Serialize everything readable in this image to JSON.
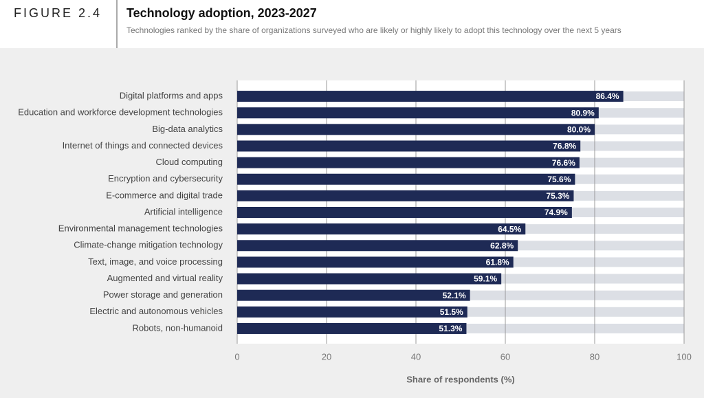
{
  "chart_data": {
    "type": "bar",
    "orientation": "horizontal",
    "figure_label": "FIGURE 2.4",
    "title": "Technology adoption, 2023-2027",
    "subtitle": "Technologies ranked by the share of organizations surveyed who are likely or highly likely to adopt this technology over the next 5 years",
    "xlabel": "Share of respondents (%)",
    "categories": [
      "Digital platforms and apps",
      "Education and workforce development technologies",
      "Big-data analytics",
      "Internet of things and connected devices",
      "Cloud computing",
      "Encryption and cybersecurity",
      "E-commerce and digital trade",
      "Artificial intelligence",
      "Environmental management technologies",
      "Climate-change mitigation technology",
      "Text, image, and voice processing",
      "Augmented and virtual reality",
      "Power storage and generation",
      "Electric and autonomous vehicles",
      "Robots, non-humanoid"
    ],
    "values": [
      86.4,
      80.9,
      80.0,
      76.8,
      76.6,
      75.6,
      75.3,
      74.9,
      64.5,
      62.8,
      61.8,
      59.1,
      52.1,
      51.5,
      51.3
    ],
    "value_labels": [
      "86.4%",
      "80.9%",
      "80.0%",
      "76.8%",
      "76.6%",
      "75.6%",
      "75.3%",
      "74.9%",
      "64.5%",
      "62.8%",
      "61.8%",
      "59.1%",
      "52.1%",
      "51.5%",
      "51.3%"
    ],
    "color": "#1e2a55",
    "track_color": "#dcdfe5",
    "xlim": [
      0,
      100
    ],
    "xticks": [
      0,
      20,
      40,
      60,
      80,
      100
    ],
    "grid": true
  }
}
